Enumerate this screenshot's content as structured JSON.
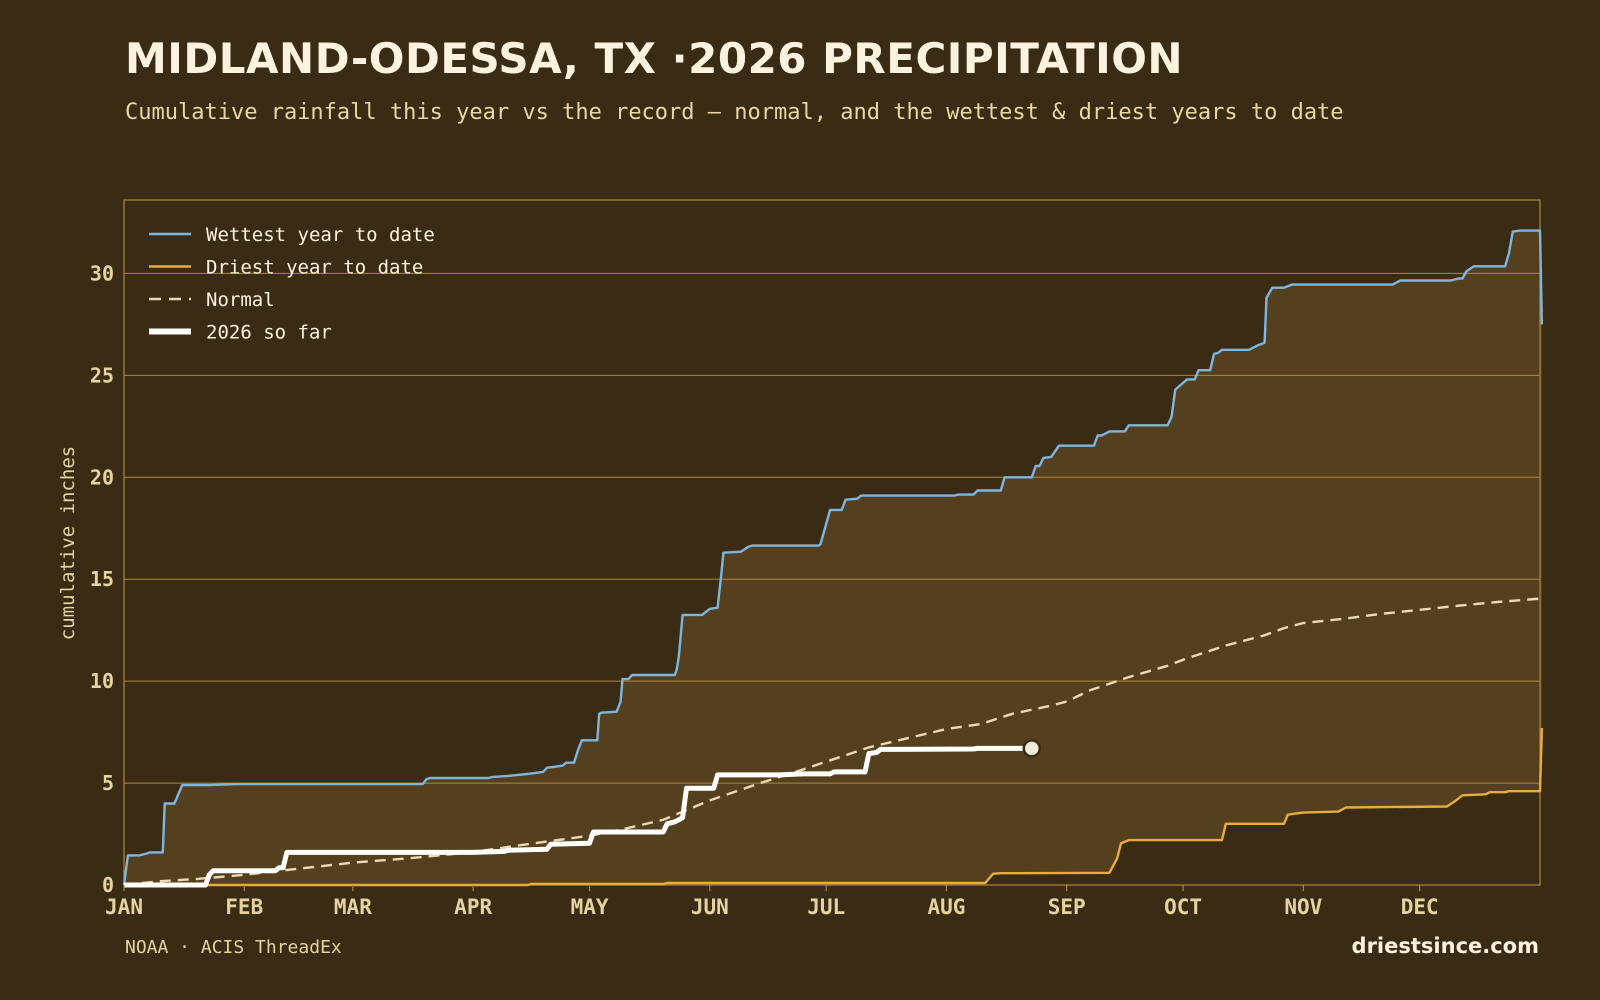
{
  "header": {
    "title": "MIDLAND-ODESSA, TX ·2026 PRECIPITATION",
    "subtitle": "Cumulative rainfall this year vs the record — normal, and the wettest & driest years to date"
  },
  "footer": {
    "source": "NOAA · ACIS ThreadEx",
    "brand": "driestsince.com"
  },
  "colors": {
    "background": "#3a2c14",
    "band_fill": "#54401f",
    "grid": "#b08a3a",
    "wettest": "#7fb6e0",
    "driest": "#e8ad3c",
    "normal": "#eadbb8",
    "current": "#ffffff",
    "text": "#e6d3a2"
  },
  "chart_data": {
    "type": "line",
    "title": "MIDLAND-ODESSA, TX ·2026 PRECIPITATION",
    "subtitle": "Cumulative rainfall this year vs the record — normal, and the wettest & driest years to date",
    "xlabel": "",
    "ylabel": "cumulative inches",
    "x_unit": "day of year",
    "xlim": [
      1,
      366
    ],
    "ylim": [
      0,
      33.6
    ],
    "yticks": [
      0,
      5,
      10,
      15,
      20,
      25,
      30
    ],
    "month_ticks": [
      {
        "label": "JAN",
        "day": 1
      },
      {
        "label": "FEB",
        "day": 32
      },
      {
        "label": "MAR",
        "day": 60
      },
      {
        "label": "APR",
        "day": 91
      },
      {
        "label": "MAY",
        "day": 121
      },
      {
        "label": "JUN",
        "day": 152
      },
      {
        "label": "JUL",
        "day": 182
      },
      {
        "label": "AUG",
        "day": 213
      },
      {
        "label": "SEP",
        "day": 244
      },
      {
        "label": "OCT",
        "day": 274
      },
      {
        "label": "NOV",
        "day": 305
      },
      {
        "label": "DEC",
        "day": 335
      }
    ],
    "grid": true,
    "legend_position": "top-left",
    "series": [
      {
        "name": "Wettest year to date",
        "key": "wettest",
        "style": "step",
        "points": [
          [
            1,
            0
          ],
          [
            2,
            1.45
          ],
          [
            5,
            1.45
          ],
          [
            7,
            1.55
          ],
          [
            7.5,
            1.6
          ],
          [
            11,
            1.6
          ],
          [
            11.5,
            4.0
          ],
          [
            14,
            4.0
          ],
          [
            16,
            4.9
          ],
          [
            22,
            4.9
          ],
          [
            23,
            4.9
          ],
          [
            30,
            4.95
          ],
          [
            60,
            4.95
          ],
          [
            70,
            4.95
          ],
          [
            78,
            4.95
          ],
          [
            79,
            5.2
          ],
          [
            80,
            5.25
          ],
          [
            95,
            5.25
          ],
          [
            96,
            5.3
          ],
          [
            100,
            5.35
          ],
          [
            105,
            5.45
          ],
          [
            109,
            5.55
          ],
          [
            110,
            5.75
          ],
          [
            114,
            5.85
          ],
          [
            115,
            6.0
          ],
          [
            117,
            6.0
          ],
          [
            118,
            6.6
          ],
          [
            119,
            7.1
          ],
          [
            122,
            7.1
          ],
          [
            123,
            7.1
          ],
          [
            123.5,
            8.4
          ],
          [
            124,
            8.45
          ],
          [
            128,
            8.5
          ],
          [
            129,
            9.0
          ],
          [
            129.5,
            10.1
          ],
          [
            131,
            10.1
          ],
          [
            132,
            10.3
          ],
          [
            143,
            10.3
          ],
          [
            143.5,
            10.6
          ],
          [
            144,
            11.2
          ],
          [
            145,
            13.25
          ],
          [
            150,
            13.25
          ],
          [
            152,
            13.55
          ],
          [
            154,
            13.6
          ],
          [
            155,
            15.3
          ],
          [
            155.5,
            16.3
          ],
          [
            160,
            16.35
          ],
          [
            162,
            16.6
          ],
          [
            163,
            16.65
          ],
          [
            180,
            16.65
          ],
          [
            180.5,
            16.7
          ],
          [
            183,
            18.4
          ],
          [
            186,
            18.4
          ],
          [
            187,
            18.9
          ],
          [
            190,
            18.95
          ],
          [
            191,
            19.1
          ],
          [
            200,
            19.1
          ],
          [
            215,
            19.1
          ],
          [
            216,
            19.15
          ],
          [
            220,
            19.15
          ],
          [
            221,
            19.35
          ],
          [
            227,
            19.35
          ],
          [
            228,
            20.0
          ],
          [
            235,
            20.0
          ],
          [
            236,
            20.55
          ],
          [
            237,
            20.55
          ],
          [
            238,
            20.95
          ],
          [
            240,
            21.0
          ],
          [
            242,
            21.55
          ],
          [
            251,
            21.55
          ],
          [
            252,
            22.05
          ],
          [
            253,
            22.05
          ],
          [
            255,
            22.25
          ],
          [
            259,
            22.25
          ],
          [
            260,
            22.55
          ],
          [
            270,
            22.55
          ],
          [
            271,
            22.95
          ],
          [
            272,
            24.3
          ],
          [
            275,
            24.8
          ],
          [
            277,
            24.8
          ],
          [
            278,
            25.25
          ],
          [
            281,
            25.25
          ],
          [
            282,
            26.05
          ],
          [
            283,
            26.1
          ],
          [
            284,
            26.25
          ],
          [
            291,
            26.25
          ],
          [
            293,
            26.45
          ],
          [
            295,
            26.6
          ],
          [
            295.5,
            28.8
          ],
          [
            297,
            29.3
          ],
          [
            300,
            29.3
          ],
          [
            302,
            29.45
          ],
          [
            328,
            29.45
          ],
          [
            330,
            29.65
          ],
          [
            343,
            29.65
          ],
          [
            345,
            29.75
          ],
          [
            346,
            29.75
          ],
          [
            347,
            30.1
          ],
          [
            349,
            30.35
          ],
          [
            357,
            30.35
          ],
          [
            358,
            31.0
          ],
          [
            359,
            32.05
          ],
          [
            361,
            32.1
          ],
          [
            366,
            32.1
          ],
          [
            366.5,
            27.5
          ]
        ]
      },
      {
        "name": "Driest year to date",
        "key": "driest",
        "style": "step",
        "points": [
          [
            1,
            0
          ],
          [
            105,
            0
          ],
          [
            106,
            0.05
          ],
          [
            140,
            0.05
          ],
          [
            141,
            0.1
          ],
          [
            223,
            0.1
          ],
          [
            225,
            0.55
          ],
          [
            227,
            0.58
          ],
          [
            255,
            0.6
          ],
          [
            257,
            1.3
          ],
          [
            258,
            2.05
          ],
          [
            260,
            2.2
          ],
          [
            284,
            2.2
          ],
          [
            285,
            3.0
          ],
          [
            300,
            3.0
          ],
          [
            301,
            3.45
          ],
          [
            303,
            3.5
          ],
          [
            305,
            3.55
          ],
          [
            314,
            3.6
          ],
          [
            316,
            3.8
          ],
          [
            342,
            3.85
          ],
          [
            344,
            4.1
          ],
          [
            346,
            4.4
          ],
          [
            352,
            4.45
          ],
          [
            353,
            4.55
          ],
          [
            357,
            4.55
          ],
          [
            358,
            4.6
          ],
          [
            366,
            4.6
          ],
          [
            366.5,
            7.7
          ]
        ]
      },
      {
        "name": "Normal",
        "key": "normal",
        "style": "dashed",
        "points": [
          [
            1,
            0
          ],
          [
            10,
            0.18
          ],
          [
            20,
            0.3
          ],
          [
            32,
            0.5
          ],
          [
            45,
            0.78
          ],
          [
            60,
            1.1
          ],
          [
            75,
            1.32
          ],
          [
            91,
            1.62
          ],
          [
            105,
            2.0
          ],
          [
            121,
            2.42
          ],
          [
            130,
            2.75
          ],
          [
            140,
            3.2
          ],
          [
            152,
            4.15
          ],
          [
            165,
            5.0
          ],
          [
            175,
            5.6
          ],
          [
            182,
            6.05
          ],
          [
            193,
            6.75
          ],
          [
            203,
            7.2
          ],
          [
            213,
            7.65
          ],
          [
            222,
            7.9
          ],
          [
            230,
            8.4
          ],
          [
            240,
            8.8
          ],
          [
            244,
            9.0
          ],
          [
            250,
            9.55
          ],
          [
            260,
            10.2
          ],
          [
            270,
            10.75
          ],
          [
            274,
            11.05
          ],
          [
            285,
            11.75
          ],
          [
            295,
            12.25
          ],
          [
            300,
            12.6
          ],
          [
            305,
            12.85
          ],
          [
            315,
            13.05
          ],
          [
            325,
            13.3
          ],
          [
            335,
            13.5
          ],
          [
            345,
            13.7
          ],
          [
            355,
            13.88
          ],
          [
            366,
            14.05
          ]
        ]
      },
      {
        "name": "2026 so far",
        "key": "current",
        "style": "step",
        "points": [
          [
            1,
            0
          ],
          [
            22,
            0
          ],
          [
            23,
            0.5
          ],
          [
            24,
            0.7
          ],
          [
            40,
            0.7
          ],
          [
            41,
            0.85
          ],
          [
            42,
            0.85
          ],
          [
            43,
            1.6
          ],
          [
            91,
            1.6
          ],
          [
            99,
            1.65
          ],
          [
            100,
            1.7
          ],
          [
            110,
            1.75
          ],
          [
            111,
            2.0
          ],
          [
            121,
            2.05
          ],
          [
            122,
            2.6
          ],
          [
            140,
            2.6
          ],
          [
            141,
            3.0
          ],
          [
            143,
            3.1
          ],
          [
            144,
            3.2
          ],
          [
            145,
            3.3
          ],
          [
            146,
            4.75
          ],
          [
            153,
            4.75
          ],
          [
            154,
            5.4
          ],
          [
            170,
            5.4
          ],
          [
            176,
            5.45
          ],
          [
            183,
            5.45
          ],
          [
            184,
            5.55
          ],
          [
            192,
            5.55
          ],
          [
            193,
            6.45
          ],
          [
            195,
            6.5
          ],
          [
            196,
            6.65
          ],
          [
            200,
            6.65
          ],
          [
            220,
            6.67
          ],
          [
            221,
            6.7
          ],
          [
            235,
            6.7
          ]
        ]
      }
    ],
    "current_marker": {
      "day": 235,
      "value": 6.7
    }
  }
}
